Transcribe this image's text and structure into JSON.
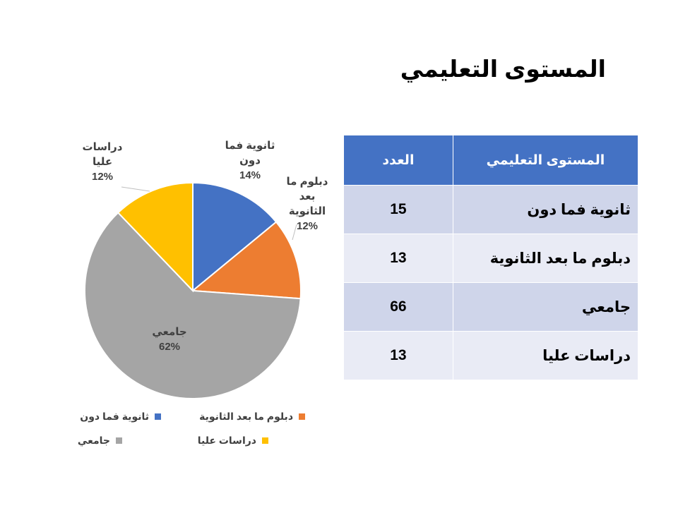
{
  "title": "المستوى التعليمي",
  "chart_data": {
    "type": "pie",
    "categories": [
      "ثانوية فما دون",
      "دبلوم ما بعد الثانوية",
      "جامعي",
      "دراسات عليا"
    ],
    "values": [
      15,
      13,
      66,
      13
    ],
    "percent_labels": [
      "14%",
      "12%",
      "62%",
      "12%"
    ],
    "colors": [
      "#4472c4",
      "#ed7d31",
      "#a5a5a5",
      "#ffc000"
    ],
    "legend_placement": "bottom",
    "title": ""
  },
  "slice_labels": [
    {
      "name": "ثانوية فما دون",
      "pct": "14%"
    },
    {
      "name": "دبلوم ما بعد الثانوية",
      "pct": "12%"
    },
    {
      "name": "جامعي",
      "pct": "62%"
    },
    {
      "name": "دراسات عليا",
      "pct": "12%"
    }
  ],
  "legend": [
    {
      "label": "ثانوية فما دون",
      "color": "#4472c4"
    },
    {
      "label": "دبلوم ما بعد الثانوية",
      "color": "#ed7d31"
    },
    {
      "label": "جامعي",
      "color": "#a5a5a5"
    },
    {
      "label": "دراسات عليا",
      "color": "#ffc000"
    }
  ],
  "table": {
    "headers": {
      "level": "المستوى التعليمي",
      "count": "العدد"
    },
    "rows": [
      {
        "level": "ثانوية فما دون",
        "count": "15"
      },
      {
        "level": "دبلوم ما بعد الثانوية",
        "count": "13"
      },
      {
        "level": "جامعي",
        "count": "66"
      },
      {
        "level": "دراسات عليا",
        "count": "13"
      }
    ],
    "header_color": "#4472c4"
  }
}
